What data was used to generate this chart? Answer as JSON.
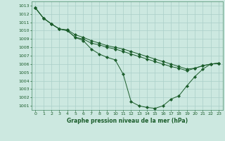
{
  "title": "Graphe pression niveau de la mer (hPa)",
  "bg_color": "#cce8e0",
  "grid_color": "#aacfc8",
  "line_color": "#1a5c2a",
  "border_color": "#4a8c6a",
  "x_min": -0.5,
  "x_max": 23.5,
  "x_ticks": [
    0,
    1,
    2,
    3,
    4,
    5,
    6,
    7,
    8,
    9,
    10,
    11,
    12,
    13,
    14,
    15,
    16,
    17,
    18,
    19,
    20,
    21,
    22,
    23
  ],
  "y_min": 1000.5,
  "y_max": 1013.5,
  "y_ticks": [
    1001,
    1002,
    1003,
    1004,
    1005,
    1006,
    1007,
    1008,
    1009,
    1010,
    1011,
    1012,
    1013
  ],
  "series": [
    [
      1012.7,
      1011.5,
      1010.8,
      1010.2,
      1010.0,
      1009.2,
      1009.0,
      1008.5,
      1008.3,
      1008.0,
      1007.8,
      1007.5,
      1007.2,
      1006.9,
      1006.6,
      1006.3,
      1006.0,
      1005.7,
      1005.5,
      1005.2,
      1005.5,
      1005.8,
      1006.0,
      1006.1
    ],
    [
      1012.7,
      1011.5,
      1010.8,
      1010.2,
      1010.1,
      1009.5,
      1009.2,
      1008.8,
      1008.5,
      1008.2,
      1008.0,
      1007.8,
      1007.5,
      1007.2,
      1006.9,
      1006.6,
      1006.3,
      1006.0,
      1005.7,
      1005.4,
      1005.5,
      1005.8,
      1006.0,
      1006.1
    ],
    [
      1012.7,
      1011.5,
      1010.8,
      1010.2,
      1010.0,
      1009.2,
      1008.8,
      1007.8,
      1007.2,
      1006.8,
      1006.5,
      1004.8,
      1001.5,
      1001.0,
      1000.8,
      1000.7,
      1001.0,
      1001.8,
      1002.2,
      1003.4,
      1004.5,
      1005.4,
      1006.0,
      1006.1
    ]
  ]
}
